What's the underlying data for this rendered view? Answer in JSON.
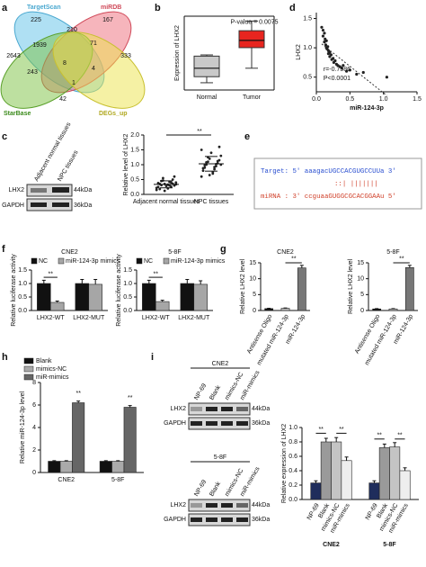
{
  "panel_labels": [
    "a",
    "b",
    "c",
    "d",
    "e",
    "f",
    "g",
    "h",
    "i"
  ],
  "venn": {
    "sets": [
      "TargetScan",
      "miRDB",
      "StarBase",
      "DEGs_up"
    ],
    "counts": [
      225,
      167,
      210,
      2643,
      1939,
      71,
      333,
      243,
      8,
      4,
      1,
      42
    ]
  },
  "blot_c": {
    "lanes": [
      "Adjacent normal tissues",
      "NPC tissues"
    ],
    "proteins": [
      "LHX2",
      "GAPDH"
    ],
    "sizes": [
      "44kDa",
      "36kDa"
    ]
  },
  "sequence": {
    "target": "Target: 5' aaagacUGCCACGUGCCUUa 3'",
    "pairing": "::| |||||||",
    "mirna": "miRNA : 3' ccguaaGUGGCGCACGGAAu 5'"
  },
  "blot_i": {
    "cell_lines": [
      "CNE2",
      "5-8F"
    ],
    "lanes": [
      "NP-69",
      "Blank",
      "mimics-NC",
      "miR-mimics"
    ],
    "proteins": [
      "LHX2",
      "GAPDH"
    ],
    "sizes": [
      "44kDa",
      "36kDa"
    ]
  },
  "chart_data": [
    {
      "type": "box",
      "ylabel": "Expression of LHX2",
      "categories": [
        "Normal",
        "Tumor"
      ],
      "boxes": [
        {
          "min": 2.1,
          "q1": 2.6,
          "median": 3.3,
          "q3": 4.3,
          "max": 4.4
        },
        {
          "min": 3.3,
          "q1": 5.0,
          "median": 5.6,
          "q3": 6.4,
          "max": 7.2
        }
      ],
      "colors": [
        "#c9c9c9",
        "#e8251f"
      ],
      "ylim": [
        1.5,
        7.6
      ],
      "annotations": [
        "P-value = 0.0075"
      ]
    },
    {
      "type": "scatter",
      "xlabel": "miR-124-3p",
      "ylabel": "LHX2",
      "color": "#222222",
      "x": [
        0.08,
        0.1,
        0.1,
        0.12,
        0.12,
        0.13,
        0.14,
        0.15,
        0.15,
        0.16,
        0.17,
        0.18,
        0.18,
        0.2,
        0.2,
        0.22,
        0.23,
        0.25,
        0.26,
        0.28,
        0.3,
        0.32,
        0.35,
        0.38,
        0.4,
        0.45,
        0.5,
        0.6,
        0.7,
        1.05
      ],
      "y": [
        1.35,
        1.3,
        1.2,
        1.25,
        1.1,
        1.15,
        1.05,
        1.0,
        1.12,
        0.98,
        1.02,
        0.95,
        0.9,
        0.92,
        0.85,
        0.88,
        0.8,
        0.82,
        0.75,
        0.78,
        0.72,
        0.7,
        0.68,
        0.65,
        0.7,
        0.6,
        0.62,
        0.55,
        0.58,
        0.5
      ],
      "xlim": [
        0,
        1.5
      ],
      "xticks": [
        {
          "value": 0,
          "label": "0.0"
        },
        0.5,
        {
          "value": 1,
          "label": "1.0"
        },
        1.5
      ],
      "ylim": [
        0.25,
        1.6
      ],
      "yticks": [
        0.5,
        {
          "value": 1,
          "label": "1.0"
        },
        1.5
      ],
      "annotations": [
        "r=-0.7586",
        "P<0.0001"
      ]
    },
    {
      "type": "dot",
      "ylabel": "Relative level of LHX2",
      "categories": [
        "Adjacent normal tissues",
        "NPC tissues"
      ],
      "color": "#222222",
      "values": [
        [
          0.15,
          0.2,
          0.25,
          0.3,
          0.35,
          0.4,
          0.45,
          0.5,
          0.55,
          0.3,
          0.35,
          0.4,
          0.28,
          0.22,
          0.33,
          0.38,
          0.42,
          0.18,
          0.26,
          0.31,
          0.36,
          0.47,
          0.6,
          0.12,
          0.34
        ],
        [
          0.6,
          0.7,
          0.8,
          0.85,
          0.9,
          0.95,
          1.0,
          1.05,
          1.1,
          1.15,
          1.2,
          1.3,
          1.4,
          1.5,
          0.75,
          0.88,
          0.92,
          0.98,
          1.02,
          1.08,
          1.12,
          1.25,
          1.6,
          0.65,
          1.0
        ]
      ],
      "ylim": [
        0,
        2
      ],
      "yticks": [
        {
          "value": 0,
          "label": "0.0"
        },
        0.5,
        {
          "value": 1,
          "label": "1.0"
        },
        1.5,
        {
          "value": 2,
          "label": "2.0"
        }
      ],
      "annotations": [
        "**"
      ]
    },
    {
      "type": "bar",
      "title": "CNE2",
      "ylabel": "Relative luciferase activity",
      "categories": [
        "LHX2-WT",
        "LHX2-MUT"
      ],
      "legend": "top",
      "series": [
        {
          "name": "NC",
          "color": "#111111",
          "values": [
            1.0,
            1.0
          ],
          "errors": [
            0.12,
            0.15
          ]
        },
        {
          "name": "miR-124-3p mimics",
          "color": "#a6a6a6",
          "values": [
            0.3,
            0.97
          ],
          "errors": [
            0.05,
            0.18
          ]
        }
      ],
      "ylim": [
        0,
        1.5
      ],
      "yticks": [
        {
          "value": 0,
          "label": "0.0"
        },
        0.5,
        {
          "value": 1,
          "label": "1.0"
        },
        1.5
      ],
      "annotations": [
        "**"
      ]
    },
    {
      "type": "bar",
      "title": "5-8F",
      "ylabel": "Relative luciferase activity",
      "categories": [
        "LHX2-WT",
        "LHX2-MUT"
      ],
      "legend": "top",
      "series": [
        {
          "name": "NC",
          "color": "#111111",
          "values": [
            1.0,
            1.0
          ],
          "errors": [
            0.12,
            0.15
          ]
        },
        {
          "name": "miR-124-3p mimics",
          "color": "#a6a6a6",
          "values": [
            0.33,
            0.97
          ],
          "errors": [
            0.05,
            0.13
          ]
        }
      ],
      "ylim": [
        0,
        1.5
      ],
      "yticks": [
        {
          "value": 0,
          "label": "0.0"
        },
        0.5,
        {
          "value": 1,
          "label": "1.0"
        },
        1.5
      ],
      "annotations": [
        "**"
      ]
    },
    {
      "type": "bar",
      "title": "CNE2",
      "ylabel": "Relative LHX2 level",
      "categories": [
        "Antisense Oligo",
        "mutated miR-124-3p",
        "miR-124-3p"
      ],
      "values": [
        0.6,
        0.7,
        13.4
      ],
      "errors": [
        0.1,
        0.1,
        0.8
      ],
      "colors": [
        "#111111",
        "#bbbbbb",
        "#777777"
      ],
      "ylim": [
        0,
        15
      ],
      "yticks": [
        0,
        5,
        10,
        15
      ],
      "annotations": [
        "**"
      ]
    },
    {
      "type": "bar",
      "title": "5-8F",
      "ylabel": "Relative LHX2 level",
      "categories": [
        "Antisense Oligo",
        "mutated miR-124-3p",
        "miR-124-3p"
      ],
      "values": [
        0.5,
        0.5,
        13.5
      ],
      "errors": [
        0.1,
        0.1,
        0.7
      ],
      "colors": [
        "#111111",
        "#bbbbbb",
        "#777777"
      ],
      "ylim": [
        0,
        15
      ],
      "yticks": [
        0,
        5,
        10,
        15
      ],
      "annotations": [
        "**"
      ]
    },
    {
      "type": "bar",
      "ylabel": "Relative miR-124-3p level",
      "categories": [
        "CNE2",
        "5-8F"
      ],
      "legend": "top-left",
      "series": [
        {
          "name": "Blank",
          "color": "#111111",
          "values": [
            1.0,
            1.0
          ],
          "errors": [
            0.05,
            0.05
          ]
        },
        {
          "name": "mimics-NC",
          "color": "#aaaaaa",
          "values": [
            1.0,
            1.0
          ],
          "errors": [
            0.05,
            0.05
          ]
        },
        {
          "name": "miR-mimics",
          "color": "#666666",
          "values": [
            6.2,
            5.8
          ],
          "errors": [
            0.15,
            0.15
          ]
        }
      ],
      "ylim": [
        0,
        8
      ],
      "yticks": [
        0,
        2,
        4,
        6,
        8
      ],
      "annotations": [
        "**",
        "**"
      ]
    },
    {
      "type": "bar",
      "ylabel": "Relative expression of LHX2",
      "categories": [
        "CNE2",
        "5-8F"
      ],
      "series": [
        {
          "name": "NP-69",
          "color": "#1f2d5c",
          "values": [
            0.23,
            0.23
          ],
          "errors": [
            0.03,
            0.03
          ]
        },
        {
          "name": "Blank",
          "color": "#9a9a9a",
          "values": [
            0.8,
            0.72
          ],
          "errors": [
            0.05,
            0.05
          ]
        },
        {
          "name": "mimics-NC",
          "color": "#c4c4c4",
          "values": [
            0.8,
            0.73
          ],
          "errors": [
            0.06,
            0.06
          ]
        },
        {
          "name": "miR-mimics",
          "color": "#eeeeee",
          "values": [
            0.54,
            0.4
          ],
          "errors": [
            0.05,
            0.04
          ]
        }
      ],
      "ylim": [
        0,
        1.0
      ],
      "yticks": [
        {
          "value": 0,
          "label": "0.0"
        },
        0.2,
        0.4,
        0.6,
        0.8,
        {
          "value": 1,
          "label": "1.0"
        }
      ],
      "annotations": [
        "**",
        "**",
        "**",
        "**"
      ]
    }
  ]
}
